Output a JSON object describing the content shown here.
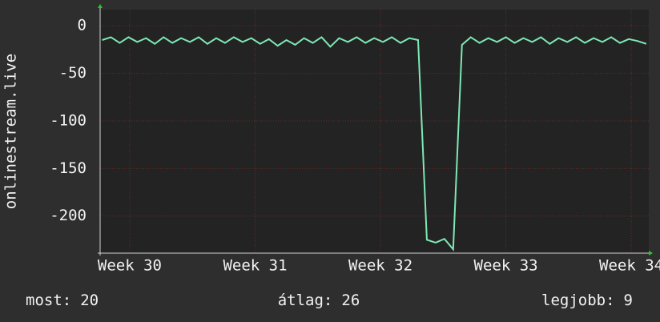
{
  "chart_data": {
    "type": "line",
    "y_label": "onlinestream.live",
    "x": [
      29.78,
      29.85,
      29.92,
      29.99,
      30.06,
      30.13,
      30.2,
      30.27,
      30.34,
      30.41,
      30.48,
      30.55,
      30.62,
      30.69,
      30.76,
      30.83,
      30.9,
      30.97,
      31.04,
      31.11,
      31.18,
      31.25,
      31.32,
      31.39,
      31.46,
      31.53,
      31.6,
      31.67,
      31.74,
      31.81,
      31.88,
      31.95,
      32.02,
      32.09,
      32.16,
      32.23,
      32.3,
      32.37,
      32.44,
      32.51,
      32.58,
      32.65,
      32.72,
      32.79,
      32.86,
      32.93,
      33.0,
      33.07,
      33.14,
      33.21,
      33.28,
      33.35,
      33.42,
      33.49,
      33.56,
      33.63,
      33.7,
      33.77,
      33.84,
      33.91,
      33.98,
      34.05,
      34.12
    ],
    "series": [
      {
        "name": "onlinestream.live",
        "color": "#7ee8b4",
        "values": [
          -15,
          -12,
          -18,
          -12,
          -17,
          -13,
          -19,
          -12,
          -18,
          -13,
          -17,
          -12,
          -19,
          -13,
          -18,
          -12,
          -17,
          -13,
          -19,
          -14,
          -21,
          -15,
          -20,
          -13,
          -18,
          -12,
          -22,
          -13,
          -17,
          -12,
          -18,
          -13,
          -17,
          -12,
          -18,
          -13,
          -15,
          -225,
          -228,
          -224,
          -235,
          -20,
          -12,
          -18,
          -13,
          -17,
          -12,
          -18,
          -13,
          -17,
          -12,
          -19,
          -13,
          -17,
          -12,
          -18,
          -13,
          -17,
          -12,
          -18,
          -14,
          -16,
          -19
        ]
      }
    ],
    "xlim": [
      29.764,
      34.14
    ],
    "ylim": [
      -239,
      17
    ],
    "xticks": [
      {
        "value": 30,
        "label": "Week 30"
      },
      {
        "value": 31,
        "label": "Week 31"
      },
      {
        "value": 32,
        "label": "Week 32"
      },
      {
        "value": 33,
        "label": "Week 33"
      },
      {
        "value": 34,
        "label": "Week 34"
      }
    ],
    "yticks": [
      0,
      -50,
      -100,
      -150,
      -200
    ],
    "grid": true,
    "summary": [
      {
        "label": "most:",
        "value": 20
      },
      {
        "label": "átlag:",
        "value": 26
      },
      {
        "label": "legjobb:",
        "value": 9
      }
    ]
  }
}
